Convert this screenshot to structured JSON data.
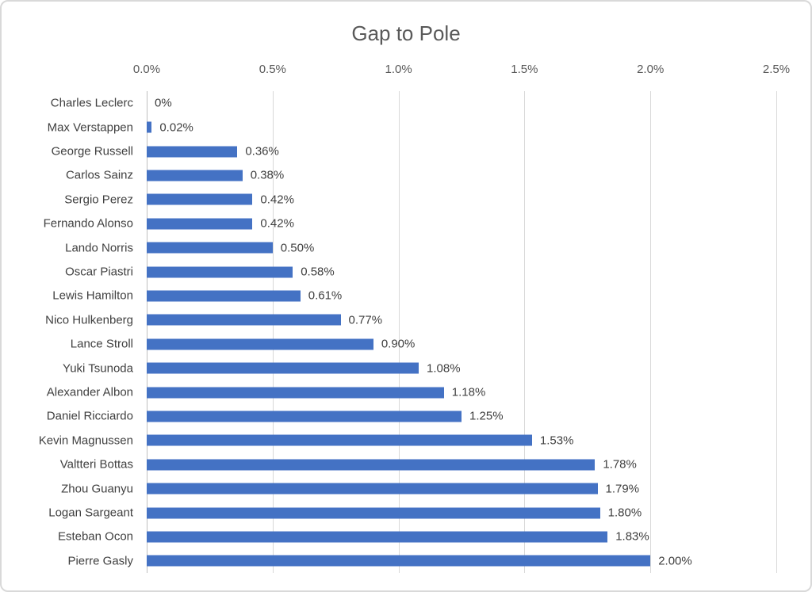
{
  "chart_data": {
    "type": "bar",
    "orientation": "horizontal",
    "title": "Gap to Pole",
    "categories": [
      "Charles Leclerc",
      "Max Verstappen",
      "George Russell",
      "Carlos Sainz",
      "Sergio Perez",
      "Fernando Alonso",
      "Lando Norris",
      "Oscar Piastri",
      "Lewis Hamilton",
      "Nico Hulkenberg",
      "Lance Stroll",
      "Yuki Tsunoda",
      "Alexander Albon",
      "Daniel Ricciardo",
      "Kevin Magnussen",
      "Valtteri Bottas",
      "Zhou Guanyu",
      "Logan Sargeant",
      "Esteban Ocon",
      "Pierre Gasly"
    ],
    "values": [
      0,
      0.02,
      0.36,
      0.38,
      0.42,
      0.42,
      0.5,
      0.58,
      0.61,
      0.77,
      0.9,
      1.08,
      1.18,
      1.25,
      1.53,
      1.78,
      1.79,
      1.8,
      1.83,
      2.0
    ],
    "value_labels": [
      "0%",
      "0.02%",
      "0.36%",
      "0.38%",
      "0.42%",
      "0.42%",
      "0.50%",
      "0.58%",
      "0.61%",
      "0.77%",
      "0.90%",
      "1.08%",
      "1.18%",
      "1.25%",
      "1.53%",
      "1.78%",
      "1.79%",
      "1.80%",
      "1.83%",
      "2.00%"
    ],
    "x_ticks": [
      "0.0%",
      "0.5%",
      "1.0%",
      "1.5%",
      "2.0%",
      "2.5%"
    ],
    "xlim": [
      0,
      2.5
    ],
    "axis_position": "top",
    "grid": true,
    "legend": "none",
    "colors": {
      "bar": "#4472C4",
      "title": "#595959",
      "tick_label": "#595959",
      "category_label": "#404040",
      "data_label": "#404040",
      "gridline": "#D9D9D9",
      "axis_line": "#BFBFBF",
      "background": "#FFFFFF",
      "frame_border": "#D9D9D9"
    }
  }
}
